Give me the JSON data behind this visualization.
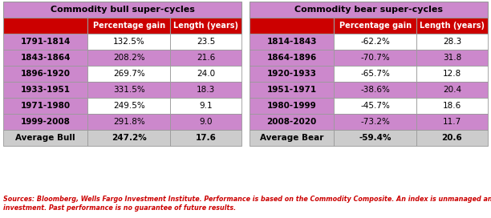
{
  "bull_title": "Commodity bull super-cycles",
  "bear_title": "Commodity bear super-cycles",
  "col_headers": [
    "Percentage gain",
    "Length (years)"
  ],
  "bull_rows": [
    [
      "1791-1814",
      "132.5%",
      "23.5"
    ],
    [
      "1843-1864",
      "208.2%",
      "21.6"
    ],
    [
      "1896-1920",
      "269.7%",
      "24.0"
    ],
    [
      "1933-1951",
      "331.5%",
      "18.3"
    ],
    [
      "1971-1980",
      "249.5%",
      "9.1"
    ],
    [
      "1999-2008",
      "291.8%",
      "9.0"
    ]
  ],
  "bull_avg": [
    "Average Bull",
    "247.2%",
    "17.6"
  ],
  "bear_rows": [
    [
      "1814-1843",
      "-62.2%",
      "28.3"
    ],
    [
      "1864-1896",
      "-70.7%",
      "31.8"
    ],
    [
      "1920-1933",
      "-65.7%",
      "12.8"
    ],
    [
      "1951-1971",
      "-38.6%",
      "20.4"
    ],
    [
      "1980-1999",
      "-45.7%",
      "18.6"
    ],
    [
      "2008-2020",
      "-73.2%",
      "11.7"
    ]
  ],
  "bear_avg": [
    "Average Bear",
    "-59.4%",
    "20.6"
  ],
  "header_bg": "#CC0000",
  "header_fg": "#FFFFFF",
  "title_bg": "#CC88CC",
  "title_fg": "#000000",
  "row_bg_white": "#FFFFFF",
  "row_bg_purple": "#CC88CC",
  "avg_bg": "#CCCCCC",
  "border_color": "#999999",
  "footnote": "Sources: Bloomberg, Wells Fargo Investment Institute. Performance is based on the Commodity Composite. An index is unmanaged and not available for direct\ninvestment. Past performance is no guarantee of future results.",
  "footnote_color": "#CC0000",
  "footnote_size": 5.8
}
